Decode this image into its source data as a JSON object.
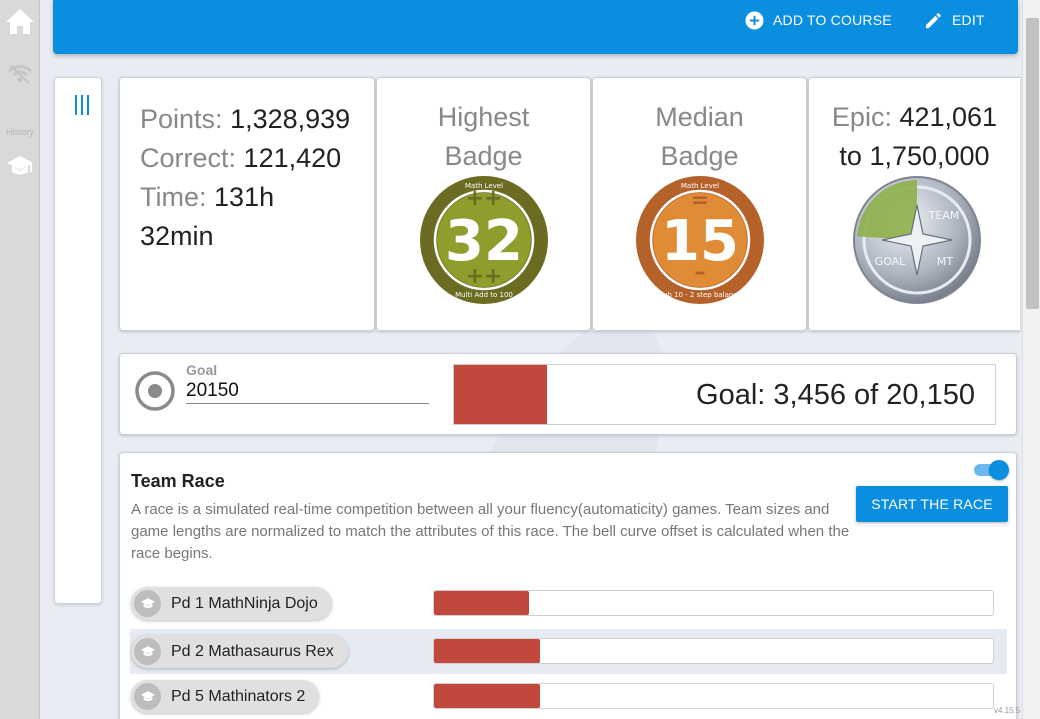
{
  "rail": {
    "history_label": "History"
  },
  "header": {
    "add_to_course_label": "ADD TO COURSE",
    "edit_label": "EDIT"
  },
  "stats": {
    "points_label": "Points:",
    "points_value": "1,328,939",
    "correct_label": "Correct:",
    "correct_value": "121,420",
    "time_label": "Time:",
    "time_value": "131h",
    "time_value_2": "32min"
  },
  "highest_badge": {
    "heading_1": "Highest",
    "heading_2": "Badge",
    "top_text": "Math Level",
    "number": "32",
    "bottom_text": "Multi Add to 100",
    "outer_color": "#6b6b22",
    "inner_color": "#8f9d2d"
  },
  "median_badge": {
    "heading_1": "Median",
    "heading_2": "Badge",
    "top_text": "Math Level",
    "number": "15",
    "bottom_text": "Sub 10 - 2 step balance",
    "outer_color": "#b5622a",
    "inner_color": "#e08b35"
  },
  "epic": {
    "label": "Epic:",
    "value": "421,061",
    "target_text": "to 1,750,000",
    "progress_fraction": 0.2406,
    "progress_color": "#8eb04a",
    "emblem_text_1": "TEAM",
    "emblem_text_2": "GOAL",
    "emblem_text_3": "MT"
  },
  "goal": {
    "label": "Goal",
    "input_value": "20150",
    "display_text": "Goal: 3,456 of 20,150",
    "progress_fraction": 0.1715,
    "fill_color": "#c1483c"
  },
  "team_race": {
    "title": "Team Race",
    "description": "A race is a simulated real-time competition between all your fluency(automaticity) games. Team sizes and game lengths are normalized to match the attributes of this race. The bell curve offset is calculated when the race begins.",
    "start_button_label": "START THE RACE",
    "toggle_on": true,
    "teams": [
      {
        "name": "Pd 1 MathNinja Dojo",
        "progress_fraction": 0.17
      },
      {
        "name": "Pd 2 Mathasaurus Rex",
        "progress_fraction": 0.19
      },
      {
        "name": "Pd 5 Mathinators 2",
        "progress_fraction": 0.19
      }
    ]
  },
  "footer": {
    "version": "v4.15.5"
  }
}
